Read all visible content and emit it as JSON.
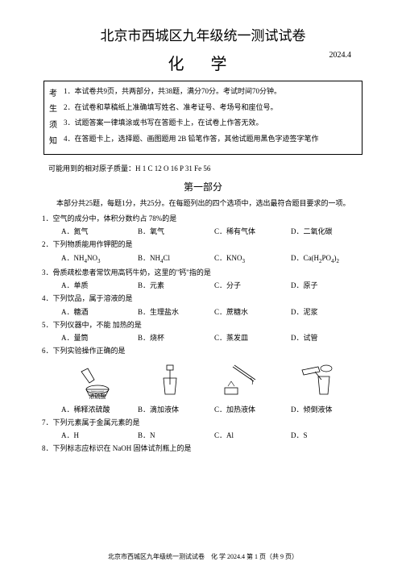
{
  "title_main": "北京市西城区九年级统一测试试卷",
  "title_sub": "化 学",
  "date": "2024.4",
  "notice_left": [
    "考",
    "生",
    "须",
    "知"
  ],
  "notice_items": [
    "1．本试卷共9页，共两部分，共38题，满分70分。考试时间70分钟。",
    "2．在试卷和草稿纸上准确填写姓名、准考证号、考场号和座位号。",
    "3．试题答案一律填涂或书写在答题卡上，在试卷上作答无效。",
    "4．在答题卡上，选择题、画图题用 2B 铅笔作答，其他试题用黑色字迹签字笔作"
  ],
  "atomic_mass": "可能用到的相对原子质量：H 1  C 12  O 16  P 31  Fe 56",
  "section1_title": "第一部分",
  "section1_instruction": "本部分共25题，每题1分，共25分。在每题列出的四个选项中，选出最符合题目要求的一项。",
  "questions": [
    {
      "num": "1",
      "text": "．空气的成分中，体积分数约占 78%的是",
      "opts": [
        "A．氮气",
        "B．氧气",
        "C．稀有气体",
        "D．二氧化碳"
      ]
    },
    {
      "num": "2",
      "text": "．下列物质能用作钾肥的是",
      "opts": [
        "A．NH₄NO₃",
        "B．NH₄Cl",
        "C．KNO₃",
        "D．Ca(H₂PO₄)₂"
      ]
    },
    {
      "num": "3",
      "text": "．骨质疏松患者常饮用高钙牛奶，这里的\"钙\"指的是",
      "opts": [
        "A．单质",
        "B．元素",
        "C．分子",
        "D．原子"
      ]
    },
    {
      "num": "4",
      "text": "．下列饮品，属于溶液的是",
      "opts": [
        "A．糖酒",
        "B．生理盐水",
        "C．蔗糖水",
        "D．泥浆"
      ]
    },
    {
      "num": "5",
      "text": "．下列仪器中，不能 加热的是",
      "opts": [
        "A．量筒",
        "B．烧杯",
        "C．蒸发皿",
        "D．试管"
      ]
    },
    {
      "num": "6",
      "text": "．下列实验操作正确的是",
      "hasImages": true,
      "opts": [
        "A．稀释浓硫酸",
        "B．滴加液体",
        "C．加热液体",
        "D．倾倒液体"
      ],
      "img_label": "浓硫酸"
    },
    {
      "num": "7",
      "text": "．下列元素属于金属元素的是",
      "opts": [
        "A．H",
        "B．N",
        "C．Al",
        "D．S"
      ]
    },
    {
      "num": "8",
      "text": "．下列标志应标识在 NaOH 固体试剂瓶上的是",
      "opts": []
    }
  ],
  "footer": "北京市西城区九年级统一测试试卷　化 学  2024.4  第 1 页（共 9 页）"
}
